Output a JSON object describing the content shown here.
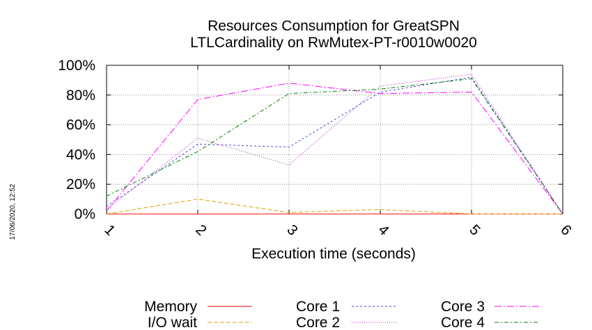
{
  "side_stamp": "17/06/2020, 12:52",
  "chart_data": {
    "type": "line",
    "title_lines": [
      "Resources Consumption for GreatSPN",
      "LTLCardinality on RwMutex-PT-r0010w0020"
    ],
    "xlabel": "Execution time (seconds)",
    "ylabel": "",
    "x_ticks": [
      "1",
      "2",
      "3",
      "4",
      "5",
      "6"
    ],
    "y_ticks": [
      "0%",
      "20%",
      "40%",
      "60%",
      "80%",
      "100%"
    ],
    "xlim": [
      1,
      6
    ],
    "ylim": [
      0,
      100
    ],
    "grid": true,
    "legend_position": "bottom",
    "series": [
      {
        "name": "Memory",
        "color": "#ff0000",
        "dash": "",
        "x": [
          1,
          2,
          3,
          4,
          5,
          6
        ],
        "y": [
          0,
          0,
          0,
          0,
          0,
          0
        ]
      },
      {
        "name": "I/O wait",
        "color": "#e0a000",
        "dash": "6,3",
        "x": [
          1,
          2,
          3,
          4,
          5,
          6
        ],
        "y": [
          0,
          10,
          1,
          3,
          0,
          0
        ]
      },
      {
        "name": "Core 1",
        "color": "#4a4ad8",
        "dash": "3,3",
        "x": [
          1,
          2,
          3,
          4,
          5,
          6
        ],
        "y": [
          5,
          47,
          45,
          82,
          92,
          0
        ]
      },
      {
        "name": "Core 2",
        "color": "#b020d0",
        "dash": "1,2",
        "x": [
          1,
          2,
          3,
          4,
          5,
          6
        ],
        "y": [
          3,
          51,
          33,
          86,
          94,
          0
        ]
      },
      {
        "name": "Core 3",
        "color": "#ff00ff",
        "dash": "10,3,2,3",
        "x": [
          1,
          2,
          3,
          4,
          5,
          6
        ],
        "y": [
          2,
          77,
          88,
          81,
          82,
          0
        ]
      },
      {
        "name": "Core 4",
        "color": "#008000",
        "dash": "6,3,2,3",
        "x": [
          1,
          2,
          3,
          4,
          5,
          6
        ],
        "y": [
          12,
          42,
          81,
          84,
          91,
          0
        ]
      }
    ]
  }
}
